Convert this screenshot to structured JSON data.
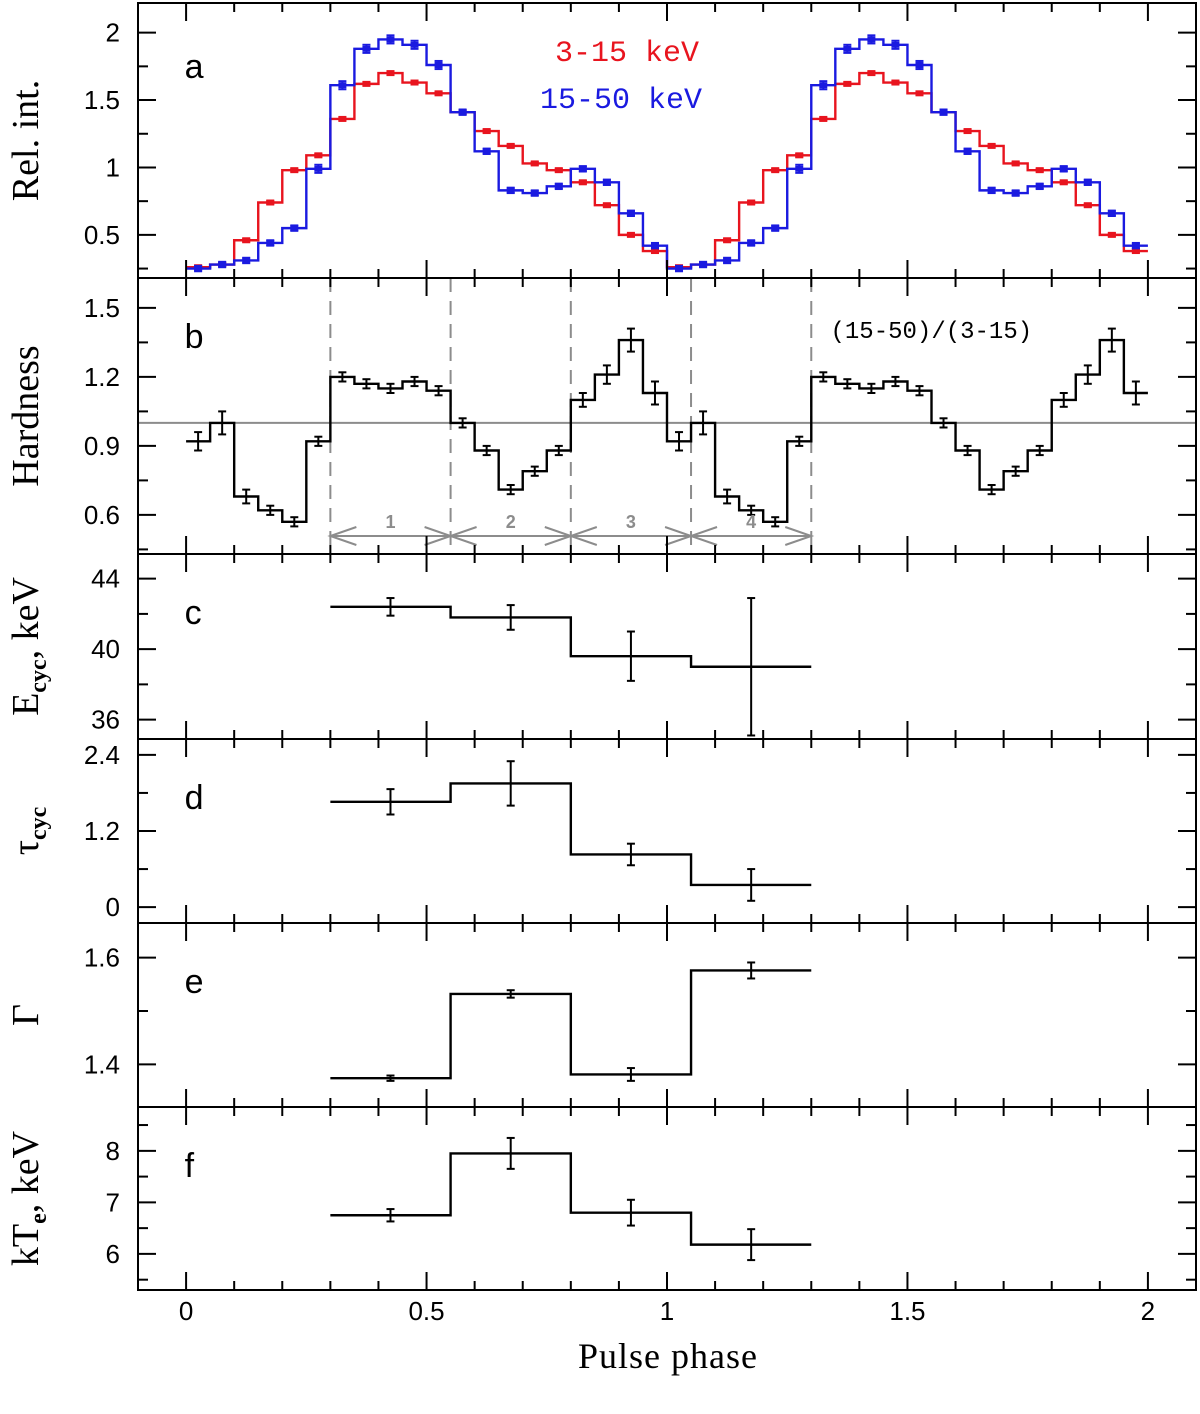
{
  "chart_data": {
    "type": "line",
    "xlabel": "Pulse phase",
    "xlim": [
      -0.1,
      2.1
    ],
    "x_ticks": [
      0,
      0.5,
      1,
      1.5,
      2
    ],
    "x_tick_labels": [
      "0",
      "0.5",
      "1",
      "1.5",
      "2"
    ],
    "colors": {
      "soft": "#e8141e",
      "hard": "#1a1ae0",
      "black": "#000000",
      "grey": "#8c8c8c"
    },
    "panels": [
      {
        "id": "a",
        "letter": "a",
        "ylabel": "Rel. int.",
        "ylim": [
          0.18,
          2.22
        ],
        "y_ticks": [
          0.5,
          1,
          1.5,
          2
        ],
        "y_tick_labels": [
          "0.5",
          "1",
          "1.5",
          "2"
        ],
        "legend": [
          {
            "label": "3-15 keV",
            "color": "#e8141e"
          },
          {
            "label": "15-50 keV",
            "color": "#1a1ae0"
          }
        ],
        "series": [
          {
            "name": "3-15 keV",
            "color": "#e8141e",
            "bin_width": 0.05,
            "x": [
              0.025,
              0.075,
              0.125,
              0.175,
              0.225,
              0.275,
              0.325,
              0.375,
              0.425,
              0.475,
              0.525,
              0.575,
              0.625,
              0.675,
              0.725,
              0.775,
              0.825,
              0.875,
              0.925,
              0.975,
              1.025,
              1.075,
              1.125,
              1.175,
              1.225,
              1.275,
              1.325,
              1.375,
              1.425,
              1.475,
              1.525,
              1.575,
              1.625,
              1.675,
              1.725,
              1.775,
              1.825,
              1.875,
              1.925,
              1.975
            ],
            "values": [
              0.26,
              0.28,
              0.46,
              0.74,
              0.98,
              1.09,
              1.36,
              1.62,
              1.7,
              1.63,
              1.55,
              1.41,
              1.27,
              1.16,
              1.03,
              0.98,
              0.89,
              0.72,
              0.5,
              0.38,
              0.26,
              0.28,
              0.46,
              0.74,
              0.98,
              1.09,
              1.36,
              1.62,
              1.7,
              1.63,
              1.55,
              1.41,
              1.27,
              1.16,
              1.03,
              0.98,
              0.89,
              0.72,
              0.5,
              0.38
            ],
            "errors": [
              0.01,
              0.01,
              0.01,
              0.01,
              0.01,
              0.01,
              0.01,
              0.01,
              0.01,
              0.01,
              0.01,
              0.01,
              0.01,
              0.01,
              0.01,
              0.01,
              0.01,
              0.01,
              0.01,
              0.01,
              0.01,
              0.01,
              0.01,
              0.01,
              0.01,
              0.01,
              0.01,
              0.01,
              0.01,
              0.01,
              0.01,
              0.01,
              0.01,
              0.01,
              0.01,
              0.01,
              0.01,
              0.01,
              0.01,
              0.01
            ]
          },
          {
            "name": "15-50 keV",
            "color": "#1a1ae0",
            "bin_width": 0.05,
            "x": [
              0.025,
              0.075,
              0.125,
              0.175,
              0.225,
              0.275,
              0.325,
              0.375,
              0.425,
              0.475,
              0.525,
              0.575,
              0.625,
              0.675,
              0.725,
              0.775,
              0.825,
              0.875,
              0.925,
              0.975,
              1.025,
              1.075,
              1.125,
              1.175,
              1.225,
              1.275,
              1.325,
              1.375,
              1.425,
              1.475,
              1.525,
              1.575,
              1.625,
              1.675,
              1.725,
              1.775,
              1.825,
              1.875,
              1.925,
              1.975
            ],
            "values": [
              0.25,
              0.28,
              0.31,
              0.44,
              0.55,
              0.99,
              1.61,
              1.88,
              1.95,
              1.91,
              1.76,
              1.41,
              1.12,
              0.83,
              0.81,
              0.86,
              0.99,
              0.89,
              0.66,
              0.42,
              0.25,
              0.28,
              0.31,
              0.44,
              0.55,
              0.99,
              1.61,
              1.88,
              1.95,
              1.91,
              1.76,
              1.41,
              1.12,
              0.83,
              0.81,
              0.86,
              0.99,
              0.89,
              0.66,
              0.42
            ],
            "errors": [
              0.02,
              0.02,
              0.02,
              0.02,
              0.02,
              0.03,
              0.03,
              0.03,
              0.03,
              0.03,
              0.03,
              0.02,
              0.02,
              0.02,
              0.02,
              0.02,
              0.02,
              0.02,
              0.02,
              0.02,
              0.02,
              0.02,
              0.02,
              0.02,
              0.02,
              0.03,
              0.03,
              0.03,
              0.03,
              0.03,
              0.03,
              0.02,
              0.02,
              0.02,
              0.02,
              0.02,
              0.02,
              0.02,
              0.02,
              0.02
            ]
          }
        ]
      },
      {
        "id": "b",
        "letter": "b",
        "ylabel": "Hardness",
        "ylim": [
          0.43,
          1.63
        ],
        "y_ticks": [
          0.6,
          0.9,
          1.2,
          1.5
        ],
        "y_tick_labels": [
          "0.6",
          "0.9",
          "1.2",
          "1.5"
        ],
        "ratio_label": "(15-50)/(3-15)",
        "reference_line": 1.0,
        "interval_boundaries": [
          0.3,
          0.55,
          0.8,
          1.05,
          1.3
        ],
        "interval_labels": [
          "1",
          "2",
          "3",
          "4"
        ],
        "series": [
          {
            "name": "(15-50)/(3-15)",
            "color": "#000000",
            "bin_width": 0.05,
            "x": [
              0.025,
              0.075,
              0.125,
              0.175,
              0.225,
              0.275,
              0.325,
              0.375,
              0.425,
              0.475,
              0.525,
              0.575,
              0.625,
              0.675,
              0.725,
              0.775,
              0.825,
              0.875,
              0.925,
              0.975,
              1.025,
              1.075,
              1.125,
              1.175,
              1.225,
              1.275,
              1.325,
              1.375,
              1.425,
              1.475,
              1.525,
              1.575,
              1.625,
              1.675,
              1.725,
              1.775,
              1.825,
              1.875,
              1.925,
              1.975
            ],
            "values": [
              0.92,
              1.0,
              0.68,
              0.62,
              0.57,
              0.92,
              1.2,
              1.17,
              1.15,
              1.18,
              1.14,
              1.0,
              0.88,
              0.71,
              0.79,
              0.88,
              1.1,
              1.21,
              1.36,
              1.13,
              0.92,
              1.0,
              0.68,
              0.62,
              0.57,
              0.92,
              1.2,
              1.17,
              1.15,
              1.18,
              1.14,
              1.0,
              0.88,
              0.71,
              0.79,
              0.88,
              1.1,
              1.21,
              1.36,
              1.13
            ],
            "errors": [
              0.04,
              0.05,
              0.03,
              0.02,
              0.02,
              0.02,
              0.02,
              0.02,
              0.02,
              0.02,
              0.02,
              0.02,
              0.02,
              0.02,
              0.02,
              0.02,
              0.03,
              0.04,
              0.05,
              0.05,
              0.04,
              0.05,
              0.03,
              0.02,
              0.02,
              0.02,
              0.02,
              0.02,
              0.02,
              0.02,
              0.02,
              0.02,
              0.02,
              0.02,
              0.02,
              0.02,
              0.03,
              0.04,
              0.05,
              0.05
            ]
          }
        ]
      },
      {
        "id": "c",
        "letter": "c",
        "ylabel": "E",
        "ylabel_sub": "cyc",
        "ylabel_suffix": ", keV",
        "ylim": [
          34.9,
          45.4
        ],
        "y_ticks": [
          36,
          40,
          44
        ],
        "y_tick_labels": [
          "36",
          "40",
          "44"
        ],
        "series": [
          {
            "name": "Ecyc",
            "color": "#000000",
            "bins": [
              [
                0.3,
                0.55
              ],
              [
                0.55,
                0.8
              ],
              [
                0.8,
                1.05
              ],
              [
                1.05,
                1.3
              ]
            ],
            "x": [
              0.425,
              0.675,
              0.925,
              1.175
            ],
            "values": [
              42.4,
              41.8,
              39.6,
              39.0
            ],
            "errors": [
              0.5,
              0.7,
              1.4,
              3.9
            ]
          }
        ]
      },
      {
        "id": "d",
        "letter": "d",
        "ylabel": "τ",
        "ylabel_sub": "cyc",
        "ylabel_suffix": "",
        "ylim": [
          -0.25,
          2.65
        ],
        "y_ticks": [
          0,
          1.2,
          2.4
        ],
        "y_tick_labels": [
          "0",
          "1.2",
          "2.4"
        ],
        "series": [
          {
            "name": "tau_cyc",
            "color": "#000000",
            "bins": [
              [
                0.3,
                0.55
              ],
              [
                0.55,
                0.8
              ],
              [
                0.8,
                1.05
              ],
              [
                1.05,
                1.3
              ]
            ],
            "x": [
              0.425,
              0.675,
              0.925,
              1.175
            ],
            "values": [
              1.66,
              1.95,
              0.83,
              0.35
            ],
            "errors": [
              0.2,
              0.35,
              0.17,
              0.25
            ]
          }
        ]
      },
      {
        "id": "e",
        "letter": "e",
        "ylabel": "Γ",
        "ylabel_sub": "",
        "ylabel_suffix": "",
        "ylim": [
          1.32,
          1.665
        ],
        "y_ticks": [
          1.4,
          1.6
        ],
        "y_tick_labels": [
          "1.4",
          "1.6"
        ],
        "series": [
          {
            "name": "Gamma",
            "color": "#000000",
            "bins": [
              [
                0.3,
                0.55
              ],
              [
                0.55,
                0.8
              ],
              [
                0.8,
                1.05
              ],
              [
                1.05,
                1.3
              ]
            ],
            "x": [
              0.425,
              0.675,
              0.925,
              1.175
            ],
            "values": [
              1.374,
              1.532,
              1.381,
              1.576
            ],
            "errors": [
              0.005,
              0.007,
              0.012,
              0.015
            ]
          }
        ]
      },
      {
        "id": "f",
        "letter": "f",
        "ylabel": "kT",
        "ylabel_sub": "e",
        "ylabel_suffix": ", keV",
        "ylim": [
          5.3,
          8.85
        ],
        "y_ticks": [
          6,
          7,
          8
        ],
        "y_tick_labels": [
          "6",
          "7",
          "8"
        ],
        "series": [
          {
            "name": "kTe",
            "color": "#000000",
            "bins": [
              [
                0.3,
                0.55
              ],
              [
                0.55,
                0.8
              ],
              [
                0.8,
                1.05
              ],
              [
                1.05,
                1.3
              ]
            ],
            "x": [
              0.425,
              0.675,
              0.925,
              1.175
            ],
            "values": [
              6.75,
              7.95,
              6.8,
              6.18
            ],
            "errors": [
              0.12,
              0.3,
              0.25,
              0.3
            ]
          }
        ]
      }
    ]
  }
}
